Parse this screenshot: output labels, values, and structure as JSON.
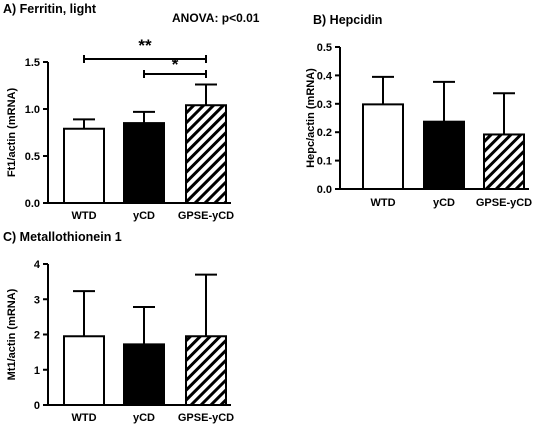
{
  "colors": {
    "ink": "#000000",
    "open_fill": "#ffffff",
    "solid_fill": "#000000"
  },
  "chart_data": [
    {
      "type": "bar",
      "title": "A) Ferritin, light",
      "annotation": "ANOVA:  p<0.01",
      "ylabel": "Ft1/actin (mRNA)",
      "ylim": [
        0,
        1.5
      ],
      "yticks": [
        "0.0",
        "0.5",
        "1.0",
        "1.5"
      ],
      "categories": [
        "WTD",
        "yCD",
        "GPSE-yCD"
      ],
      "values": [
        0.79,
        0.85,
        1.04
      ],
      "errors": [
        0.1,
        0.12,
        0.22
      ],
      "fills": [
        "open",
        "solid",
        "hatched"
      ],
      "significance": [
        {
          "from": 0,
          "to": 2,
          "label": "**"
        },
        {
          "from": 1,
          "to": 2,
          "label": "*"
        }
      ]
    },
    {
      "type": "bar",
      "title": "B) Hepcidin",
      "ylabel": "Hepc/actin (mRNA)",
      "ylim": [
        0,
        0.5
      ],
      "yticks": [
        "0.0",
        "0.1",
        "0.2",
        "0.3",
        "0.4",
        "0.5"
      ],
      "categories": [
        "WTD",
        "yCD",
        "GPSE-yCD"
      ],
      "values": [
        0.298,
        0.237,
        0.192
      ],
      "errors": [
        0.097,
        0.14,
        0.145
      ],
      "fills": [
        "open",
        "solid",
        "hatched"
      ]
    },
    {
      "type": "bar",
      "title": "C) Metallothionein 1",
      "ylabel": "Mt1/actin (mRNA)",
      "ylim": [
        0,
        4
      ],
      "yticks": [
        "0",
        "1",
        "2",
        "3",
        "4"
      ],
      "categories": [
        "WTD",
        "yCD",
        "GPSE-yCD"
      ],
      "values": [
        1.95,
        1.72,
        1.95
      ],
      "errors": [
        1.28,
        1.06,
        1.75
      ],
      "fills": [
        "open",
        "solid",
        "hatched"
      ]
    }
  ]
}
